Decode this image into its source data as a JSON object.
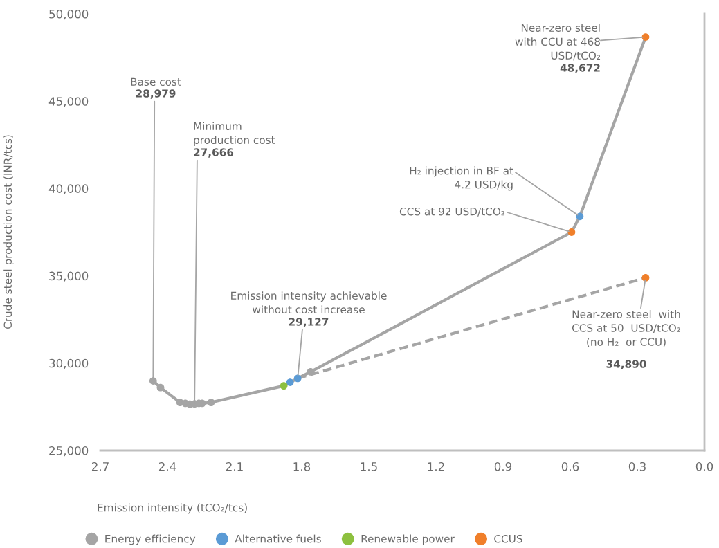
{
  "chart_data": {
    "type": "scatter",
    "xlabel": "Emission intensity (tCO₂/tcs)",
    "ylabel": "Crude steel production cost (INR/tcs)",
    "xlim": [
      2.7,
      0.0
    ],
    "xticks": [
      2.7,
      2.4,
      2.1,
      1.8,
      1.5,
      1.2,
      0.9,
      0.6,
      0.3,
      {
        "value": 0.0,
        "label": "0.0"
      }
    ],
    "ylim": [
      25000,
      50000
    ],
    "yticks": [
      {
        "value": 25000,
        "label": "25,000"
      },
      {
        "value": 30000,
        "label": "30,000"
      },
      {
        "value": 35000,
        "label": "35,000"
      },
      {
        "value": 40000,
        "label": "40,000"
      },
      {
        "value": 45000,
        "label": "45,000"
      },
      {
        "value": 50000,
        "label": "50,000"
      }
    ],
    "legend": "bottom",
    "series": [
      {
        "type": "line",
        "color": "#a5a5a5",
        "marker": "none",
        "line_style": "solid",
        "x": [
          2.464,
          2.431,
          2.344,
          2.32,
          2.3,
          2.279,
          2.26,
          2.245,
          2.205,
          1.88,
          1.852,
          1.818,
          1.76,
          0.594,
          0.557,
          0.263
        ],
        "values": [
          28979,
          28600,
          27750,
          27700,
          27650,
          27666,
          27700,
          27700,
          27750,
          28700,
          28900,
          29127,
          29500,
          37500,
          38400,
          48672
        ]
      },
      {
        "type": "line",
        "color": "#a5a5a5",
        "marker": "none",
        "line_style": "dashed",
        "x": [
          1.818,
          0.263
        ],
        "values": [
          29127,
          34890
        ]
      },
      {
        "name": "Energy efficiency",
        "color": "#a5a5a5",
        "marker": "circle",
        "x": [
          2.464,
          2.431,
          2.344,
          2.32,
          2.3,
          2.279,
          2.26,
          2.245,
          2.205,
          1.76
        ],
        "values": [
          28979,
          28600,
          27750,
          27700,
          27650,
          27666,
          27700,
          27700,
          27750,
          29500
        ]
      },
      {
        "name": "Alternative fuels",
        "color": "#5b9bd5",
        "marker": "circle",
        "x": [
          1.852,
          1.818,
          0.557
        ],
        "values": [
          28900,
          29127,
          38400
        ]
      },
      {
        "name": "Renewable power",
        "color": "#8dc03f",
        "marker": "circle",
        "x": [
          1.88
        ],
        "values": [
          28700
        ]
      },
      {
        "name": "CCUS",
        "color": "#f07f2a",
        "marker": "circle",
        "x": [
          0.594,
          0.263,
          0.263
        ],
        "values": [
          37500,
          48672,
          34890
        ]
      }
    ],
    "annotations": [
      "Base cost",
      {
        "text": "28,979",
        "x": 2.464,
        "y": 28979
      },
      "Minimum\nproduction cost",
      {
        "text": "27,666",
        "x": 2.279,
        "y": 27666
      },
      "Emission intensity achievable\nwithout cost increase",
      {
        "text": "29,127",
        "x": 1.818,
        "y": 29127
      },
      {
        "text": "H₂ injection in BF at\n4.2 USD/kg",
        "x": 0.557,
        "y": 38400
      },
      {
        "text": "CCS at 92 USD/tCO₂",
        "x": 0.594,
        "y": 37500
      },
      "Near-zero steel\nwith CCU at 468\nUSD/tCO₂",
      "48,672",
      {
        "text": "Near-zero steel  with\nCCS at 50  USD/tCO₂\n(no H₂  or CCU)",
        "x": 0.263,
        "y": 34890
      },
      "34,890"
    ]
  }
}
